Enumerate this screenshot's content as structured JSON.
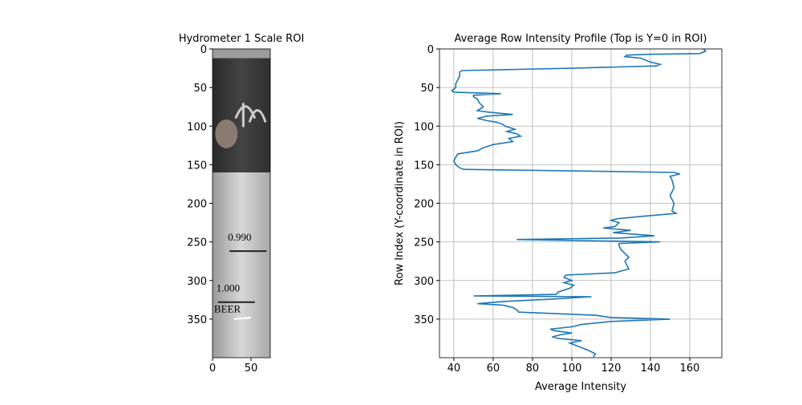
{
  "chart_data": [
    {
      "type": "image",
      "title": "Hydrometer 1 Scale ROI",
      "xlim": [
        0,
        75
      ],
      "xticks": [
        0,
        50
      ],
      "ylim": [
        0,
        400
      ],
      "y_inverted": true,
      "yticks": [
        0,
        50,
        100,
        150,
        200,
        250,
        300,
        350
      ],
      "image_labels": [
        "0.990",
        "1.000",
        "BEER"
      ]
    },
    {
      "type": "line",
      "title": "Average Row Intensity Profile (Top is Y=0 in ROI)",
      "xlabel": "Average Intensity",
      "ylabel": "Row Index (Y-coordinate in ROI)",
      "xlim": [
        32.7,
        176.3
      ],
      "xticks": [
        40,
        60,
        80,
        100,
        120,
        140,
        160
      ],
      "ylim": [
        0,
        400
      ],
      "y_inverted": true,
      "yticks": [
        0,
        50,
        100,
        150,
        200,
        250,
        300,
        350
      ],
      "grid": true,
      "color": "#1f77b4",
      "y": [
        0,
        3,
        6,
        7,
        8,
        10,
        12,
        17,
        20,
        22,
        25,
        28,
        30,
        35,
        40,
        45,
        50,
        54,
        56,
        58,
        60,
        62,
        65,
        70,
        75,
        80,
        82,
        85,
        87,
        90,
        93,
        95,
        98,
        100,
        104,
        107,
        110,
        113,
        116,
        120,
        124,
        128,
        132,
        136,
        140,
        145,
        150,
        154,
        156,
        158,
        160,
        162,
        165,
        170,
        180,
        190,
        200,
        210,
        213,
        217,
        220,
        222,
        225,
        230,
        232,
        235,
        238,
        242,
        245,
        247,
        250,
        252,
        255,
        260,
        265,
        270,
        275,
        280,
        285,
        290,
        293,
        296,
        300,
        303,
        306,
        310,
        315,
        318,
        320,
        321,
        324,
        327,
        330,
        332,
        335,
        338,
        341,
        345,
        348,
        350,
        353,
        357,
        360,
        363,
        365,
        368,
        370,
        373,
        375,
        378,
        381,
        385,
        390,
        395,
        399
      ],
      "values": [
        167,
        168,
        165,
        140,
        128,
        127,
        135,
        140,
        145,
        143,
        100,
        44,
        43,
        43,
        42,
        41,
        41,
        39,
        40,
        64,
        50,
        50,
        52,
        53,
        55,
        52,
        58,
        70,
        57,
        52,
        57,
        62,
        65,
        66,
        71,
        67,
        72,
        74,
        68,
        70,
        60,
        55,
        52,
        42,
        41,
        40,
        41,
        43,
        45,
        100,
        152,
        155,
        150,
        151,
        152,
        150,
        152,
        151,
        153,
        135,
        123,
        120,
        124,
        122,
        116,
        130,
        121,
        142,
        125,
        72,
        145,
        124,
        124,
        125,
        127,
        129,
        127,
        128,
        129,
        122,
        97,
        96,
        100,
        96,
        101,
        99,
        93,
        92,
        50,
        110,
        90,
        67,
        52,
        65,
        70,
        72,
        73,
        112,
        120,
        150,
        120,
        105,
        100,
        89,
        91,
        100,
        95,
        90,
        93,
        105,
        99,
        103,
        108,
        112,
        111
      ]
    }
  ]
}
